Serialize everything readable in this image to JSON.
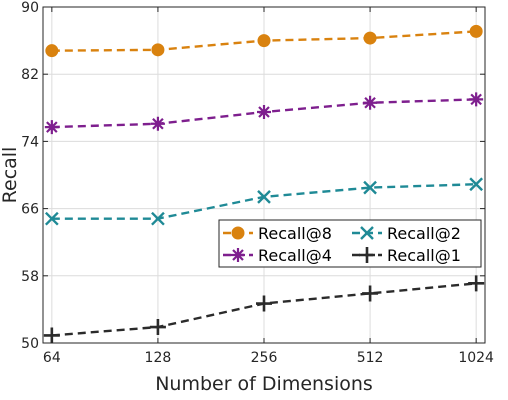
{
  "chart_data": {
    "type": "line",
    "title": "",
    "xlabel": "Number of Dimensions",
    "ylabel": "Recall",
    "categories": [
      "64",
      "128",
      "256",
      "512",
      "1024"
    ],
    "x_scale": "log2",
    "ylim": [
      50,
      90
    ],
    "yticks": [
      "50",
      "58",
      "66",
      "74",
      "82",
      "90"
    ],
    "grid": true,
    "legend_position": "lower-right",
    "series": [
      {
        "name": "Recall@8",
        "marker": "circle",
        "color": "#d9820f",
        "values": [
          84.8,
          84.9,
          86.0,
          86.3,
          87.1
        ]
      },
      {
        "name": "Recall@4",
        "marker": "asterisk",
        "color": "#7e1f8e",
        "values": [
          75.7,
          76.1,
          77.5,
          78.6,
          79.0
        ]
      },
      {
        "name": "Recall@2",
        "marker": "x",
        "color": "#1f8a96",
        "values": [
          64.8,
          64.8,
          67.4,
          68.5,
          68.9
        ]
      },
      {
        "name": "Recall@1",
        "marker": "plus",
        "color": "#2b2b2b",
        "values": [
          50.9,
          51.9,
          54.7,
          55.9,
          57.1
        ]
      }
    ]
  }
}
